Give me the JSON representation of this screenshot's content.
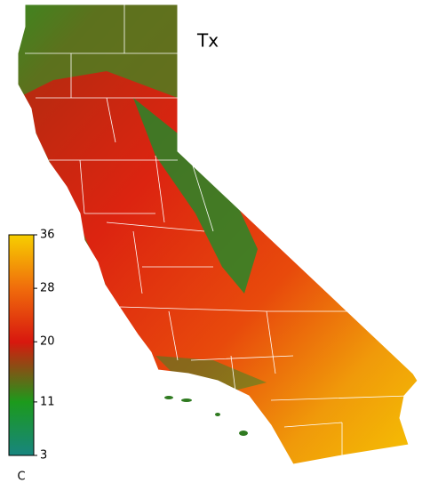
{
  "map": {
    "title": "Tx",
    "colorbar": {
      "unit": "C",
      "lim": [
        3,
        36
      ],
      "ticks": [
        3,
        11,
        20,
        28,
        36
      ],
      "colors": [
        "#17857f",
        "#1c9a1c",
        "#d8180e",
        "#f06c0c",
        "#f7cf00"
      ]
    }
  }
}
